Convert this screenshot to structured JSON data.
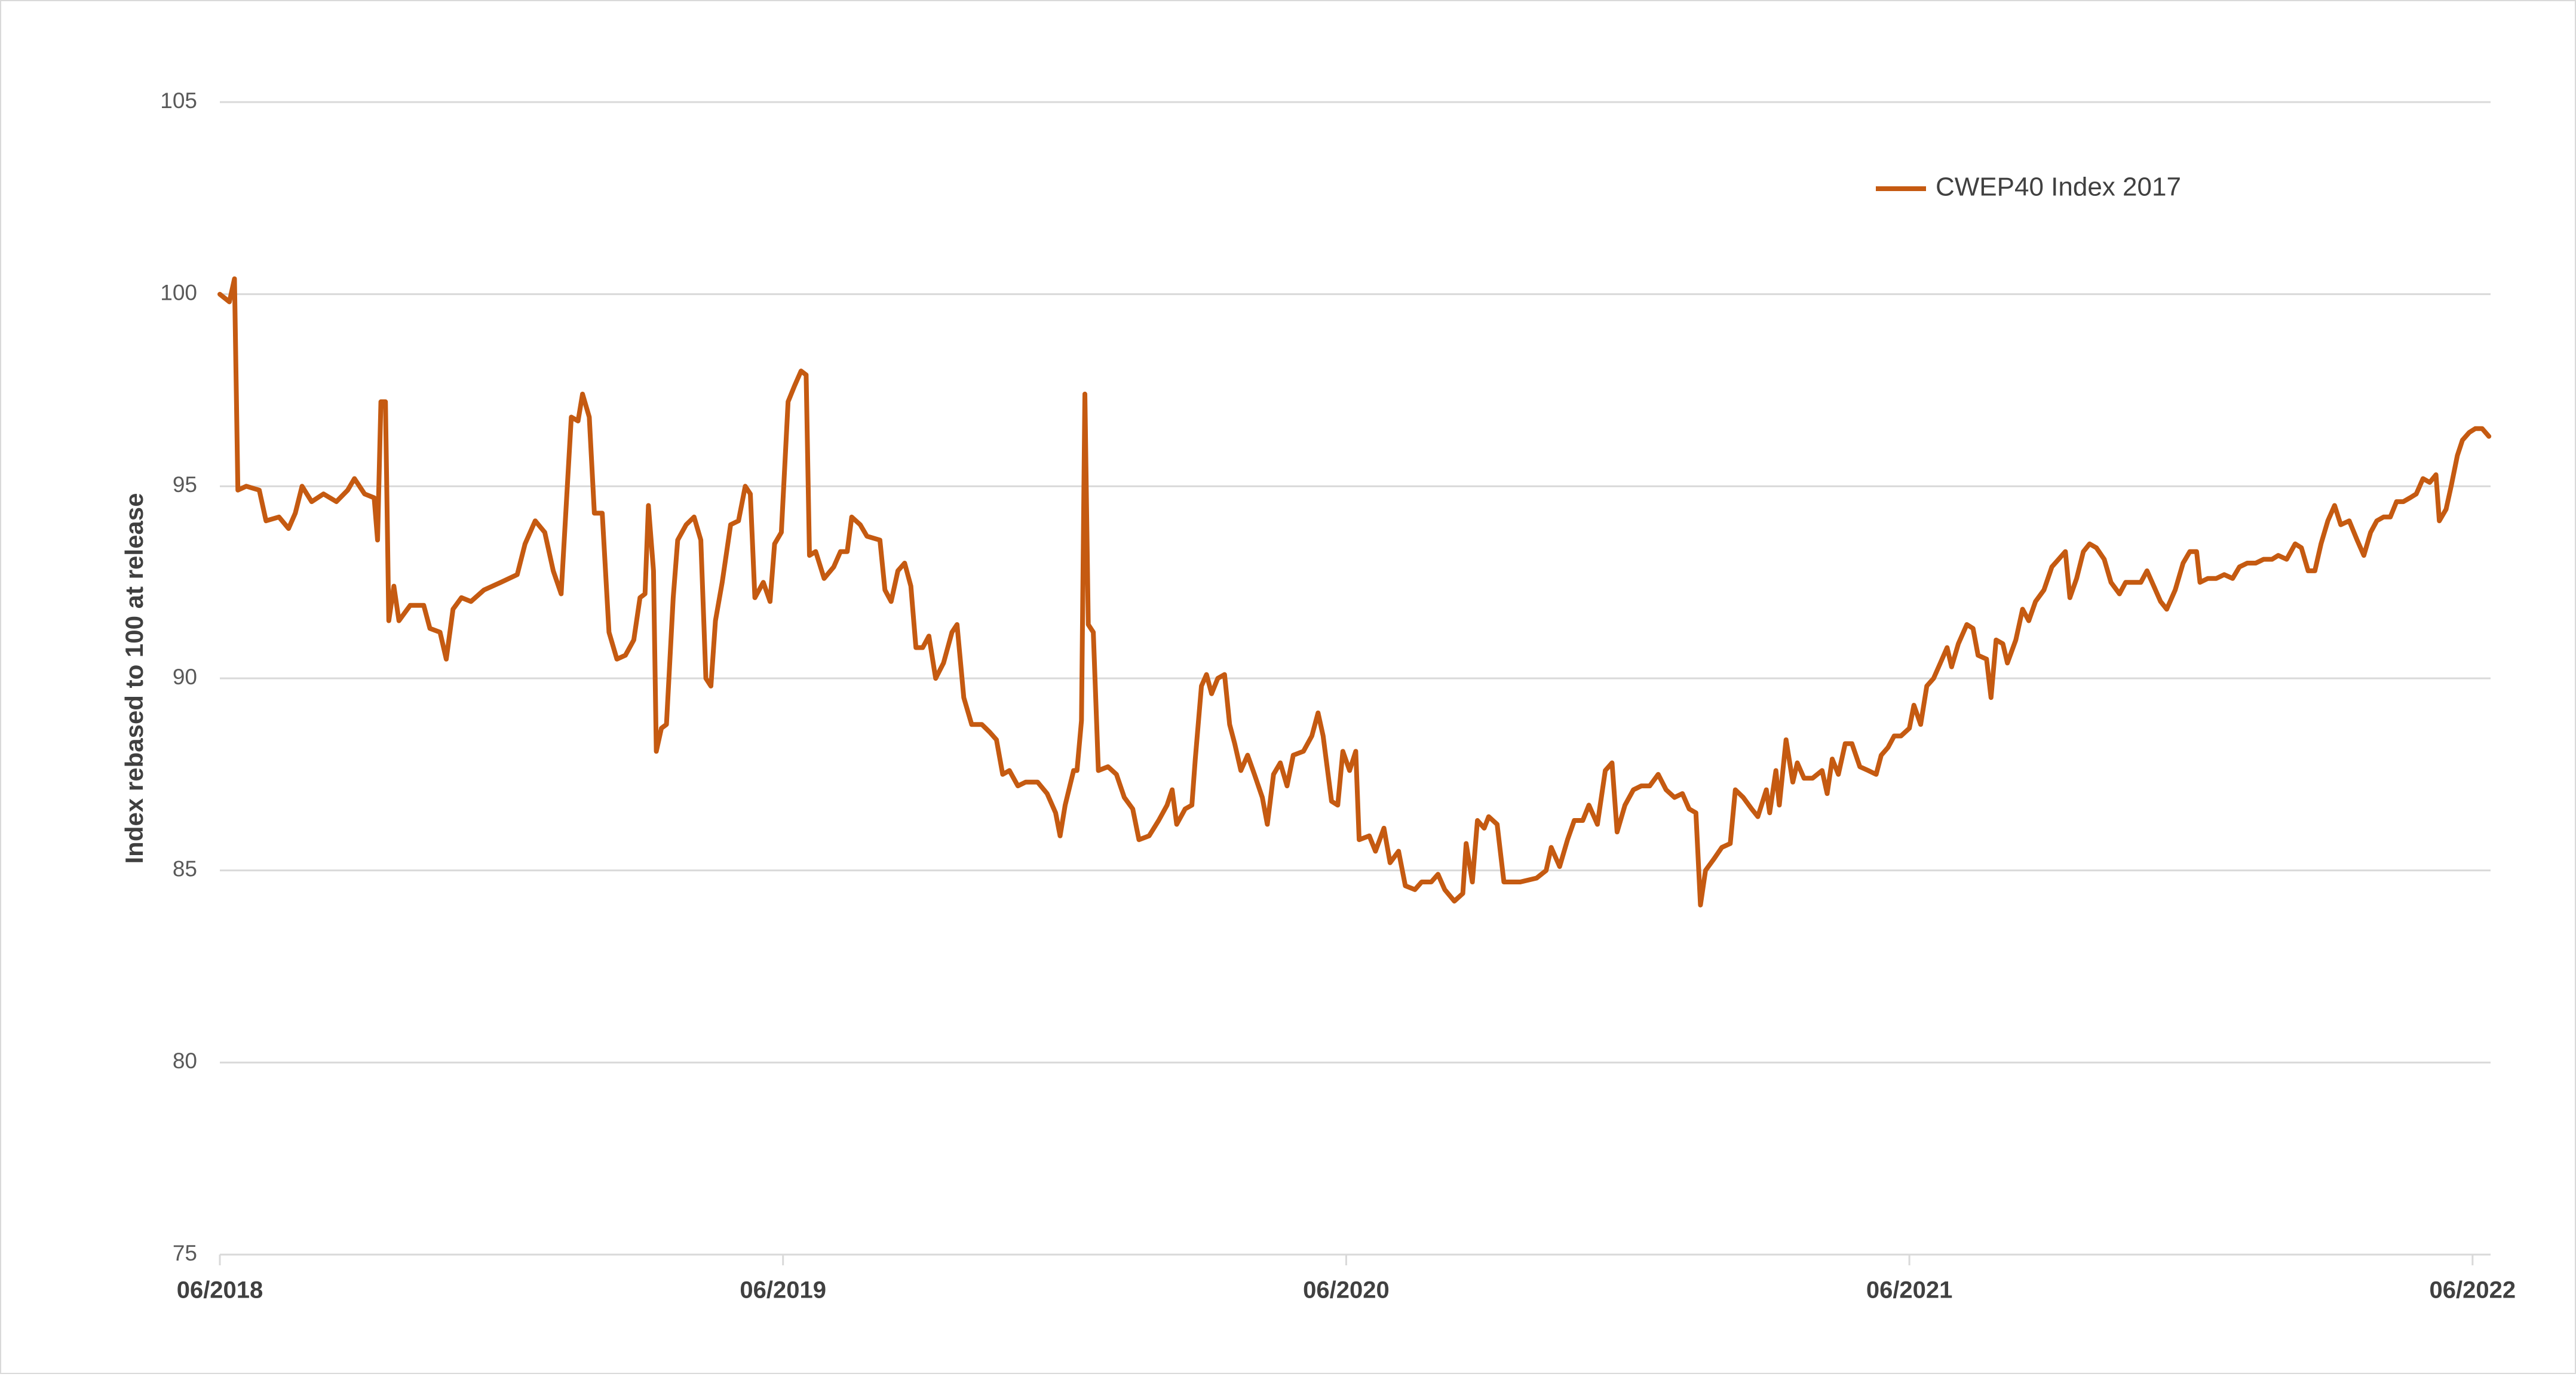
{
  "chart_data": {
    "type": "line",
    "y_label": "Index rebased to 100 at release",
    "x": [
      2018.417,
      2018.434,
      2018.443,
      2018.449,
      2018.464,
      2018.487,
      2018.499,
      2018.522,
      2018.539,
      2018.551,
      2018.563,
      2018.58,
      2018.601,
      2018.624,
      2018.644,
      2018.656,
      2018.674,
      2018.691,
      2018.697,
      2018.703,
      2018.711,
      2018.717,
      2018.726,
      2018.735,
      2018.755,
      2018.779,
      2018.79,
      2018.808,
      2018.819,
      2018.831,
      2018.846,
      2018.863,
      2018.886,
      2018.916,
      2018.945,
      2018.959,
      2018.977,
      2018.994,
      2019.009,
      2019.023,
      2019.041,
      2019.053,
      2019.061,
      2019.073,
      2019.082,
      2019.096,
      2019.108,
      2019.122,
      2019.137,
      2019.152,
      2019.163,
      2019.172,
      2019.178,
      2019.187,
      2019.192,
      2019.201,
      2019.21,
      2019.222,
      2019.23,
      2019.245,
      2019.259,
      2019.271,
      2019.28,
      2019.289,
      2019.297,
      2019.309,
      2019.324,
      2019.338,
      2019.35,
      2019.359,
      2019.367,
      2019.382,
      2019.394,
      2019.402,
      2019.414,
      2019.426,
      2019.437,
      2019.449,
      2019.458,
      2019.464,
      2019.475,
      2019.49,
      2019.507,
      2019.519,
      2019.531,
      2019.539,
      2019.554,
      2019.566,
      2019.589,
      2019.598,
      2019.609,
      2019.621,
      2019.633,
      2019.644,
      2019.653,
      2019.665,
      2019.676,
      2019.688,
      2019.702,
      2019.717,
      2019.726,
      2019.738,
      2019.752,
      2019.77,
      2019.784,
      2019.796,
      2019.807,
      2019.819,
      2019.834,
      2019.848,
      2019.869,
      2019.886,
      2019.901,
      2019.909,
      2019.918,
      2019.933,
      2019.939,
      2019.947,
      2019.953,
      2019.959,
      2019.968,
      2019.977,
      2019.994,
      2020.009,
      2020.023,
      2020.038,
      2020.049,
      2020.067,
      2020.084,
      2020.099,
      2020.108,
      2020.116,
      2020.131,
      2020.143,
      2020.149,
      2020.16,
      2020.169,
      2020.178,
      2020.189,
      2020.201,
      2020.21,
      2020.219,
      2020.23,
      2020.242,
      2020.254,
      2020.268,
      2020.277,
      2020.288,
      2020.3,
      2020.312,
      2020.323,
      2020.341,
      2020.356,
      2020.367,
      2020.376,
      2020.391,
      2020.402,
      2020.411,
      2020.423,
      2020.434,
      2020.44,
      2020.458,
      2020.469,
      2020.484,
      2020.495,
      2020.51,
      2020.522,
      2020.539,
      2020.551,
      2020.568,
      2020.58,
      2020.592,
      2020.609,
      2020.624,
      2020.63,
      2020.641,
      2020.65,
      2020.662,
      2020.67,
      2020.685,
      2020.697,
      2020.726,
      2020.755,
      2020.772,
      2020.781,
      2020.796,
      2020.81,
      2020.822,
      2020.837,
      2020.848,
      2020.863,
      2020.877,
      2020.889,
      2020.898,
      2020.912,
      2020.927,
      2020.941,
      2020.956,
      2020.971,
      2020.985,
      2021.0,
      2021.014,
      2021.026,
      2021.038,
      2021.046,
      2021.055,
      2021.07,
      2021.084,
      2021.099,
      2021.108,
      2021.122,
      2021.137,
      2021.148,
      2021.163,
      2021.169,
      2021.18,
      2021.186,
      2021.198,
      2021.21,
      2021.218,
      2021.23,
      2021.245,
      2021.262,
      2021.271,
      2021.28,
      2021.291,
      2021.303,
      2021.315,
      2021.329,
      2021.344,
      2021.358,
      2021.367,
      2021.379,
      2021.39,
      2021.402,
      2021.417,
      2021.425,
      2021.437,
      2021.448,
      2021.46,
      2021.472,
      2021.484,
      2021.492,
      2021.504,
      2021.519,
      2021.53,
      2021.539,
      2021.554,
      2021.562,
      2021.571,
      2021.583,
      2021.591,
      2021.606,
      2021.618,
      2021.629,
      2021.641,
      2021.656,
      2021.67,
      2021.682,
      2021.694,
      2021.702,
      2021.714,
      2021.726,
      2021.737,
      2021.749,
      2021.763,
      2021.775,
      2021.79,
      2021.801,
      2021.816,
      2021.828,
      2021.839,
      2021.851,
      2021.863,
      2021.874,
      2021.889,
      2021.903,
      2021.915,
      2021.927,
      2021.933,
      2021.947,
      2021.962,
      2021.976,
      2021.991,
      2022.003,
      2022.017,
      2022.032,
      2022.046,
      2022.061,
      2022.072,
      2022.087,
      2022.102,
      2022.113,
      2022.125,
      2022.137,
      2022.148,
      2022.16,
      2022.172,
      2022.183,
      2022.198,
      2022.212,
      2022.224,
      2022.236,
      2022.247,
      2022.259,
      2022.271,
      2022.282,
      2022.294,
      2022.306,
      2022.317,
      2022.329,
      2022.341,
      2022.352,
      2022.358,
      2022.37,
      2022.379,
      2022.39,
      2022.399,
      2022.411,
      2022.422,
      2022.434,
      2022.446
    ],
    "series": [
      {
        "name": "CWEP40 Index 2017",
        "color": "#c55a11",
        "values": [
          100.0,
          99.8,
          100.4,
          94.9,
          95.0,
          94.9,
          94.1,
          94.2,
          93.9,
          94.3,
          95.0,
          94.6,
          94.8,
          94.6,
          94.9,
          95.2,
          94.8,
          94.7,
          93.6,
          97.2,
          97.2,
          91.5,
          92.4,
          91.5,
          91.9,
          91.9,
          91.3,
          91.2,
          90.5,
          91.8,
          92.1,
          92.0,
          92.3,
          92.5,
          92.7,
          93.5,
          94.1,
          93.8,
          92.8,
          92.2,
          96.8,
          96.7,
          97.4,
          96.8,
          94.3,
          94.3,
          91.2,
          90.5,
          90.6,
          91.0,
          92.1,
          92.2,
          94.5,
          92.8,
          88.1,
          88.7,
          88.8,
          92.1,
          93.6,
          94.0,
          94.2,
          93.6,
          90.0,
          89.8,
          91.5,
          92.5,
          94.0,
          94.1,
          95.0,
          94.8,
          92.1,
          92.5,
          92.0,
          93.5,
          93.8,
          97.2,
          97.6,
          98.0,
          97.9,
          93.2,
          93.3,
          92.6,
          92.9,
          93.3,
          93.3,
          94.2,
          94.0,
          93.7,
          93.6,
          92.3,
          92.0,
          92.8,
          93.0,
          92.4,
          90.8,
          90.8,
          91.1,
          90.0,
          90.4,
          91.2,
          91.4,
          89.5,
          88.8,
          88.8,
          88.6,
          88.4,
          87.5,
          87.6,
          87.2,
          87.3,
          87.3,
          87.0,
          86.5,
          85.9,
          86.7,
          87.6,
          87.6,
          88.9,
          97.4,
          91.4,
          91.2,
          87.6,
          87.7,
          87.5,
          86.9,
          86.6,
          85.8,
          85.9,
          86.3,
          86.7,
          87.1,
          86.2,
          86.6,
          86.7,
          87.9,
          89.8,
          90.1,
          89.6,
          90.0,
          90.1,
          88.8,
          88.3,
          87.6,
          88.0,
          87.5,
          86.9,
          86.2,
          87.5,
          87.8,
          87.2,
          88.0,
          88.1,
          88.5,
          89.1,
          88.5,
          86.8,
          86.7,
          88.1,
          87.6,
          88.1,
          85.8,
          85.9,
          85.5,
          86.1,
          85.2,
          85.5,
          84.6,
          84.5,
          84.7,
          84.7,
          84.9,
          84.5,
          84.2,
          84.4,
          85.7,
          84.7,
          86.3,
          86.1,
          86.4,
          86.2,
          84.7,
          84.7,
          84.8,
          85.0,
          85.6,
          85.1,
          85.8,
          86.3,
          86.3,
          86.7,
          86.2,
          87.6,
          87.8,
          86.0,
          86.7,
          87.1,
          87.2,
          87.2,
          87.5,
          87.1,
          86.9,
          87.0,
          86.6,
          86.5,
          84.1,
          85.0,
          85.3,
          85.6,
          85.7,
          87.1,
          86.9,
          86.6,
          86.4,
          87.1,
          86.5,
          87.6,
          86.7,
          88.4,
          87.3,
          87.8,
          87.4,
          87.4,
          87.6,
          87.0,
          87.9,
          87.5,
          88.3,
          88.3,
          87.7,
          87.6,
          87.5,
          88.0,
          88.2,
          88.5,
          88.5,
          88.7,
          89.3,
          88.8,
          89.8,
          90.0,
          90.4,
          90.8,
          90.3,
          90.9,
          91.4,
          91.3,
          90.6,
          90.5,
          89.5,
          91.0,
          90.9,
          90.4,
          91.0,
          91.8,
          91.5,
          92.0,
          92.3,
          92.9,
          93.1,
          93.3,
          92.1,
          92.6,
          93.3,
          93.5,
          93.4,
          93.1,
          92.5,
          92.2,
          92.5,
          92.5,
          92.5,
          92.8,
          92.4,
          92.0,
          91.8,
          92.3,
          93.0,
          93.3,
          93.3,
          92.5,
          92.6,
          92.6,
          92.7,
          92.6,
          92.9,
          93.0,
          93.0,
          93.1,
          93.1,
          93.2,
          93.1,
          93.5,
          93.4,
          92.8,
          92.8,
          93.5,
          94.1,
          94.5,
          94.0,
          94.1,
          93.6,
          93.2,
          93.8,
          94.1,
          94.2,
          94.2,
          94.6,
          94.6,
          94.7,
          94.8,
          95.2,
          95.1,
          95.3,
          94.1,
          94.4,
          95.0,
          95.8,
          96.2,
          96.4,
          96.5,
          96.5,
          96.3
        ]
      }
    ],
    "xlim": [
      2018.417,
      2022.449
    ],
    "xticks": [
      {
        "value": 2018.417,
        "label": "06/2018"
      },
      {
        "value": 2019.417,
        "label": "06/2019"
      },
      {
        "value": 2020.417,
        "label": "06/2020"
      },
      {
        "value": 2021.417,
        "label": "06/2021"
      },
      {
        "value": 2022.417,
        "label": "06/2022"
      }
    ],
    "ylim": [
      75,
      105
    ],
    "yticks": [
      75,
      80,
      85,
      90,
      95,
      100,
      105
    ],
    "grid": true,
    "legend": "top-right"
  }
}
